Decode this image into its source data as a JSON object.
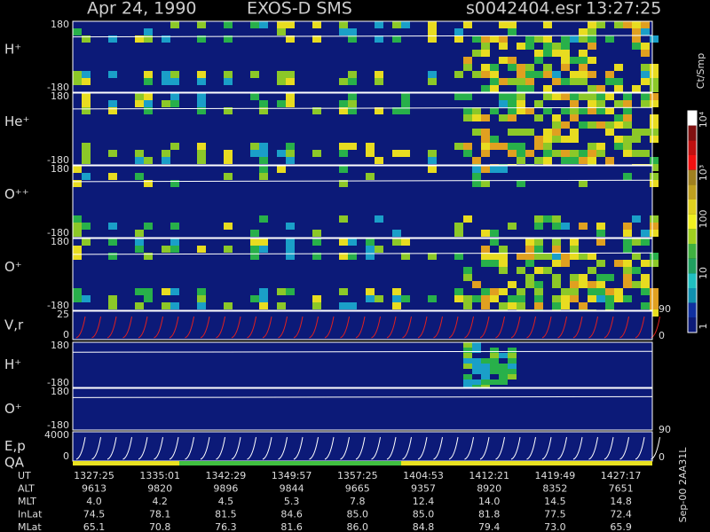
{
  "header": {
    "date": "Apr 24, 1990",
    "instrument": "EXOS-D SMS",
    "file": "s0042404.esr",
    "time": "13:27:25"
  },
  "panels": [
    {
      "label": "H⁺",
      "top": 180,
      "bottom": -180
    },
    {
      "label": "He⁺",
      "top": 180,
      "bottom": -180
    },
    {
      "label": "O⁺⁺",
      "top": 180,
      "bottom": -180
    },
    {
      "label": "O⁺",
      "top": 180,
      "bottom": -180
    },
    {
      "label": "V,r",
      "top": 25,
      "bottom": 0,
      "right_top": 90,
      "right_bottom": 0
    },
    {
      "label": "H⁺",
      "top": 180,
      "bottom": -180
    },
    {
      "label": "O⁺",
      "top": 180,
      "bottom": -180
    },
    {
      "label": "E,p",
      "top": 4000,
      "bottom": 0,
      "right_top": 90,
      "right_bottom": 0
    }
  ],
  "qa_label": "QA",
  "colorbar": {
    "title": "Ct/Smp",
    "ticks": [
      "10⁴",
      "10³",
      "100",
      "10",
      "1"
    ]
  },
  "table": {
    "rows": [
      {
        "label": "UT",
        "values": [
          "1327:25",
          "1335:01",
          "1342:29",
          "1349:57",
          "1357:25",
          "1404:53",
          "1412:21",
          "1419:49",
          "1427:17"
        ]
      },
      {
        "label": "ALT",
        "values": [
          "9613",
          "9820",
          "9896",
          "9844",
          "9665",
          "9357",
          "8920",
          "8352",
          "7651"
        ]
      },
      {
        "label": "MLT",
        "values": [
          "4.0",
          "4.2",
          "4.5",
          "5.3",
          "7.8",
          "12.4",
          "14.0",
          "14.5",
          "14.8"
        ]
      },
      {
        "label": "InLat",
        "values": [
          "74.5",
          "78.1",
          "81.5",
          "84.6",
          "85.0",
          "85.0",
          "81.8",
          "77.5",
          "72.4"
        ]
      },
      {
        "label": "MLat",
        "values": [
          "65.1",
          "70.8",
          "76.3",
          "81.6",
          "86.0",
          "84.8",
          "79.4",
          "73.0",
          "65.9"
        ]
      }
    ]
  },
  "side_note": "Sep-00  2AA31L"
}
